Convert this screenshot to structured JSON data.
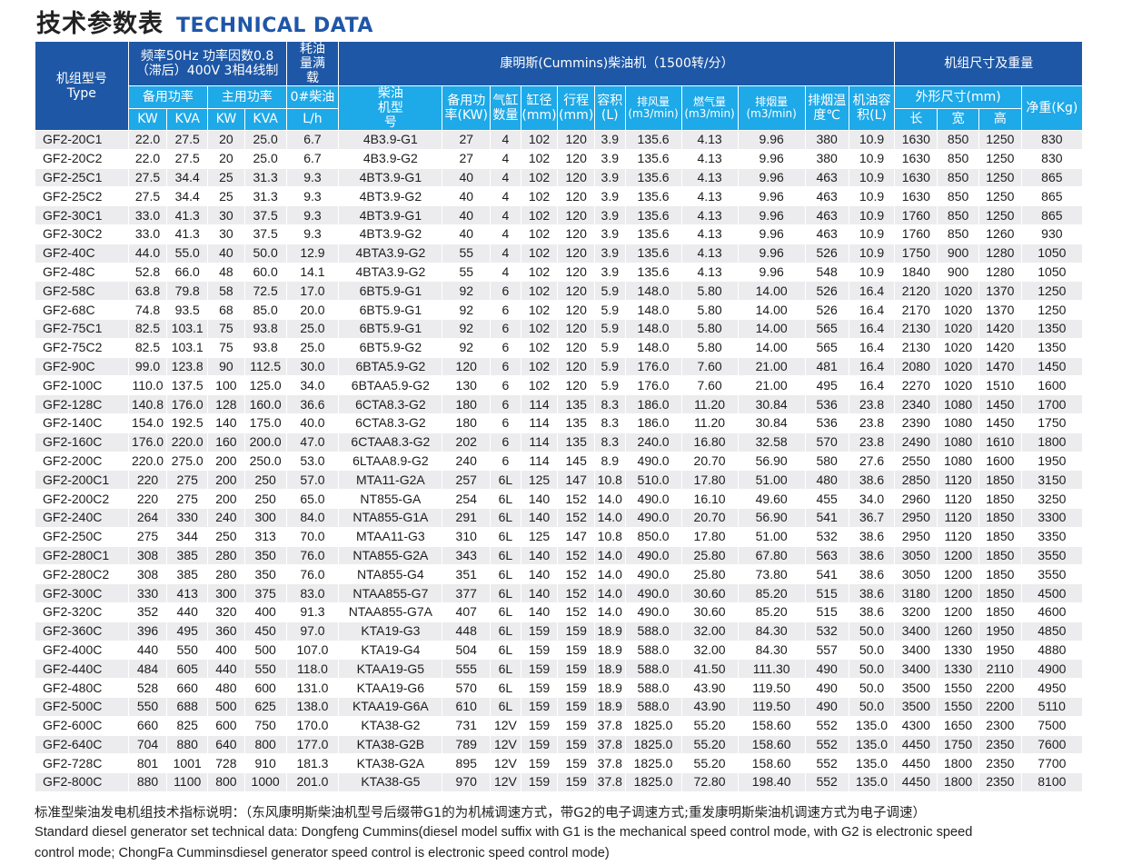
{
  "title": {
    "cn": "技术参数表",
    "en": "TECHNICAL DATA"
  },
  "header": {
    "type_label_cn": "机组型号",
    "type_label_en": "Type",
    "freq_group": "频率50Hz 功率因数0.8（滞后）400V 3相4线制",
    "fuel_group": "耗油量满载",
    "engine_group": "康明斯(Cummins)柴油机（1500转/分）",
    "dim_group": "机组尺寸及重量",
    "standby_power": "备用功率",
    "prime_power": "主用功率",
    "diesel_fuel": "0#柴油",
    "fuel_unit": "L/h",
    "engine_model": "柴油机型号",
    "engine_standby": "备用功率(KW)",
    "cylinders": "气缸数量",
    "bore": "缸径(mm)",
    "stroke": "行程(mm)",
    "displacement": "容积(L)",
    "air_flow": "排风量(m3/min)",
    "combustion_air": "燃气量(m3/min)",
    "exhaust_flow": "排烟量(m3/min)",
    "exhaust_temp": "排烟温度℃",
    "oil_capacity": "机油容积(L)",
    "dimensions": "外形尺寸(mm)",
    "net_weight": "净重(Kg)",
    "kw": "KW",
    "kva": "KVA",
    "length": "长",
    "width": "宽",
    "height": "高"
  },
  "rows": [
    [
      "GF2-20C1",
      "22.0",
      "27.5",
      "20",
      "25.0",
      "6.7",
      "4B3.9-G1",
      "27",
      "4",
      "102",
      "120",
      "3.9",
      "135.6",
      "4.13",
      "9.96",
      "380",
      "10.9",
      "1630",
      "850",
      "1250",
      "830"
    ],
    [
      "GF2-20C2",
      "22.0",
      "27.5",
      "20",
      "25.0",
      "6.7",
      "4B3.9-G2",
      "27",
      "4",
      "102",
      "120",
      "3.9",
      "135.6",
      "4.13",
      "9.96",
      "380",
      "10.9",
      "1630",
      "850",
      "1250",
      "830"
    ],
    [
      "GF2-25C1",
      "27.5",
      "34.4",
      "25",
      "31.3",
      "9.3",
      "4BT3.9-G1",
      "40",
      "4",
      "102",
      "120",
      "3.9",
      "135.6",
      "4.13",
      "9.96",
      "463",
      "10.9",
      "1630",
      "850",
      "1250",
      "865"
    ],
    [
      "GF2-25C2",
      "27.5",
      "34.4",
      "25",
      "31.3",
      "9.3",
      "4BT3.9-G2",
      "40",
      "4",
      "102",
      "120",
      "3.9",
      "135.6",
      "4.13",
      "9.96",
      "463",
      "10.9",
      "1630",
      "850",
      "1250",
      "865"
    ],
    [
      "GF2-30C1",
      "33.0",
      "41.3",
      "30",
      "37.5",
      "9.3",
      "4BT3.9-G1",
      "40",
      "4",
      "102",
      "120",
      "3.9",
      "135.6",
      "4.13",
      "9.96",
      "463",
      "10.9",
      "1760",
      "850",
      "1250",
      "865"
    ],
    [
      "GF2-30C2",
      "33.0",
      "41.3",
      "30",
      "37.5",
      "9.3",
      "4BT3.9-G2",
      "40",
      "4",
      "102",
      "120",
      "3.9",
      "135.6",
      "4.13",
      "9.96",
      "463",
      "10.9",
      "1760",
      "850",
      "1260",
      "930"
    ],
    [
      "GF2-40C",
      "44.0",
      "55.0",
      "40",
      "50.0",
      "12.9",
      "4BTA3.9-G2",
      "55",
      "4",
      "102",
      "120",
      "3.9",
      "135.6",
      "4.13",
      "9.96",
      "526",
      "10.9",
      "1750",
      "900",
      "1280",
      "1050"
    ],
    [
      "GF2-48C",
      "52.8",
      "66.0",
      "48",
      "60.0",
      "14.1",
      "4BTA3.9-G2",
      "55",
      "4",
      "102",
      "120",
      "3.9",
      "135.6",
      "4.13",
      "9.96",
      "548",
      "10.9",
      "1840",
      "900",
      "1280",
      "1050"
    ],
    [
      "GF2-58C",
      "63.8",
      "79.8",
      "58",
      "72.5",
      "17.0",
      "6BT5.9-G1",
      "92",
      "6",
      "102",
      "120",
      "5.9",
      "148.0",
      "5.80",
      "14.00",
      "526",
      "16.4",
      "2120",
      "1020",
      "1370",
      "1250"
    ],
    [
      "GF2-68C",
      "74.8",
      "93.5",
      "68",
      "85.0",
      "20.0",
      "6BT5.9-G1",
      "92",
      "6",
      "102",
      "120",
      "5.9",
      "148.0",
      "5.80",
      "14.00",
      "526",
      "16.4",
      "2170",
      "1020",
      "1370",
      "1250"
    ],
    [
      "GF2-75C1",
      "82.5",
      "103.1",
      "75",
      "93.8",
      "25.0",
      "6BT5.9-G1",
      "92",
      "6",
      "102",
      "120",
      "5.9",
      "148.0",
      "5.80",
      "14.00",
      "565",
      "16.4",
      "2130",
      "1020",
      "1420",
      "1350"
    ],
    [
      "GF2-75C2",
      "82.5",
      "103.1",
      "75",
      "93.8",
      "25.0",
      "6BT5.9-G2",
      "92",
      "6",
      "102",
      "120",
      "5.9",
      "148.0",
      "5.80",
      "14.00",
      "565",
      "16.4",
      "2130",
      "1020",
      "1420",
      "1350"
    ],
    [
      "GF2-90C",
      "99.0",
      "123.8",
      "90",
      "112.5",
      "30.0",
      "6BTA5.9-G2",
      "120",
      "6",
      "102",
      "120",
      "5.9",
      "176.0",
      "7.60",
      "21.00",
      "481",
      "16.4",
      "2080",
      "1020",
      "1470",
      "1450"
    ],
    [
      "GF2-100C",
      "110.0",
      "137.5",
      "100",
      "125.0",
      "34.0",
      "6BTAA5.9-G2",
      "130",
      "6",
      "102",
      "120",
      "5.9",
      "176.0",
      "7.60",
      "21.00",
      "495",
      "16.4",
      "2270",
      "1020",
      "1510",
      "1600"
    ],
    [
      "GF2-128C",
      "140.8",
      "176.0",
      "128",
      "160.0",
      "36.6",
      "6CTA8.3-G2",
      "180",
      "6",
      "114",
      "135",
      "8.3",
      "186.0",
      "11.20",
      "30.84",
      "536",
      "23.8",
      "2340",
      "1080",
      "1450",
      "1700"
    ],
    [
      "GF2-140C",
      "154.0",
      "192.5",
      "140",
      "175.0",
      "40.0",
      "6CTA8.3-G2",
      "180",
      "6",
      "114",
      "135",
      "8.3",
      "186.0",
      "11.20",
      "30.84",
      "536",
      "23.8",
      "2390",
      "1080",
      "1450",
      "1750"
    ],
    [
      "GF2-160C",
      "176.0",
      "220.0",
      "160",
      "200.0",
      "47.0",
      "6CTAA8.3-G2",
      "202",
      "6",
      "114",
      "135",
      "8.3",
      "240.0",
      "16.80",
      "32.58",
      "570",
      "23.8",
      "2490",
      "1080",
      "1610",
      "1800"
    ],
    [
      "GF2-200C",
      "220.0",
      "275.0",
      "200",
      "250.0",
      "53.0",
      "6LTAA8.9-G2",
      "240",
      "6",
      "114",
      "145",
      "8.9",
      "490.0",
      "20.70",
      "56.90",
      "580",
      "27.6",
      "2550",
      "1080",
      "1600",
      "1950"
    ],
    [
      "GF2-200C1",
      "220",
      "275",
      "200",
      "250",
      "57.0",
      "MTA11-G2A",
      "257",
      "6L",
      "125",
      "147",
      "10.8",
      "510.0",
      "17.80",
      "51.00",
      "480",
      "38.6",
      "2850",
      "1120",
      "1850",
      "3150"
    ],
    [
      "GF2-200C2",
      "220",
      "275",
      "200",
      "250",
      "65.0",
      "NT855-GA",
      "254",
      "6L",
      "140",
      "152",
      "14.0",
      "490.0",
      "16.10",
      "49.60",
      "455",
      "34.0",
      "2960",
      "1120",
      "1850",
      "3250"
    ],
    [
      "GF2-240C",
      "264",
      "330",
      "240",
      "300",
      "84.0",
      "NTA855-G1A",
      "291",
      "6L",
      "140",
      "152",
      "14.0",
      "490.0",
      "20.70",
      "56.90",
      "541",
      "36.7",
      "2950",
      "1120",
      "1850",
      "3300"
    ],
    [
      "GF2-250C",
      "275",
      "344",
      "250",
      "313",
      "70.0",
      "MTAA11-G3",
      "310",
      "6L",
      "125",
      "147",
      "10.8",
      "850.0",
      "17.80",
      "51.00",
      "532",
      "38.6",
      "2950",
      "1120",
      "1850",
      "3350"
    ],
    [
      "GF2-280C1",
      "308",
      "385",
      "280",
      "350",
      "76.0",
      "NTA855-G2A",
      "343",
      "6L",
      "140",
      "152",
      "14.0",
      "490.0",
      "25.80",
      "67.80",
      "563",
      "38.6",
      "3050",
      "1200",
      "1850",
      "3550"
    ],
    [
      "GF2-280C2",
      "308",
      "385",
      "280",
      "350",
      "76.0",
      "NTA855-G4",
      "351",
      "6L",
      "140",
      "152",
      "14.0",
      "490.0",
      "25.80",
      "73.80",
      "541",
      "38.6",
      "3050",
      "1200",
      "1850",
      "3550"
    ],
    [
      "GF2-300C",
      "330",
      "413",
      "300",
      "375",
      "83.0",
      "NTAA855-G7",
      "377",
      "6L",
      "140",
      "152",
      "14.0",
      "490.0",
      "30.60",
      "85.20",
      "515",
      "38.6",
      "3180",
      "1200",
      "1850",
      "4500"
    ],
    [
      "GF2-320C",
      "352",
      "440",
      "320",
      "400",
      "91.3",
      "NTAA855-G7A",
      "407",
      "6L",
      "140",
      "152",
      "14.0",
      "490.0",
      "30.60",
      "85.20",
      "515",
      "38.6",
      "3200",
      "1200",
      "1850",
      "4600"
    ],
    [
      "GF2-360C",
      "396",
      "495",
      "360",
      "450",
      "97.0",
      "KTA19-G3",
      "448",
      "6L",
      "159",
      "159",
      "18.9",
      "588.0",
      "32.00",
      "84.30",
      "532",
      "50.0",
      "3400",
      "1260",
      "1950",
      "4850"
    ],
    [
      "GF2-400C",
      "440",
      "550",
      "400",
      "500",
      "107.0",
      "KTA19-G4",
      "504",
      "6L",
      "159",
      "159",
      "18.9",
      "588.0",
      "32.00",
      "84.30",
      "557",
      "50.0",
      "3400",
      "1330",
      "1950",
      "4880"
    ],
    [
      "GF2-440C",
      "484",
      "605",
      "440",
      "550",
      "118.0",
      "KTAA19-G5",
      "555",
      "6L",
      "159",
      "159",
      "18.9",
      "588.0",
      "41.50",
      "111.30",
      "490",
      "50.0",
      "3400",
      "1330",
      "2110",
      "4900"
    ],
    [
      "GF2-480C",
      "528",
      "660",
      "480",
      "600",
      "131.0",
      "KTAA19-G6",
      "570",
      "6L",
      "159",
      "159",
      "18.9",
      "588.0",
      "43.90",
      "119.50",
      "490",
      "50.0",
      "3500",
      "1550",
      "2200",
      "4950"
    ],
    [
      "GF2-500C",
      "550",
      "688",
      "500",
      "625",
      "138.0",
      "KTAA19-G6A",
      "610",
      "6L",
      "159",
      "159",
      "18.9",
      "588.0",
      "43.90",
      "119.50",
      "490",
      "50.0",
      "3500",
      "1550",
      "2200",
      "5110"
    ],
    [
      "GF2-600C",
      "660",
      "825",
      "600",
      "750",
      "170.0",
      "KTA38-G2",
      "731",
      "12V",
      "159",
      "159",
      "37.8",
      "1825.0",
      "55.20",
      "158.60",
      "552",
      "135.0",
      "4300",
      "1650",
      "2300",
      "7500"
    ],
    [
      "GF2-640C",
      "704",
      "880",
      "640",
      "800",
      "177.0",
      "KTA38-G2B",
      "789",
      "12V",
      "159",
      "159",
      "37.8",
      "1825.0",
      "55.20",
      "158.60",
      "552",
      "135.0",
      "4450",
      "1750",
      "2350",
      "7600"
    ],
    [
      "GF2-728C",
      "801",
      "1001",
      "728",
      "910",
      "181.3",
      "KTA38-G2A",
      "895",
      "12V",
      "159",
      "159",
      "37.8",
      "1825.0",
      "55.20",
      "158.60",
      "552",
      "135.0",
      "4450",
      "1800",
      "2350",
      "7700"
    ],
    [
      "GF2-800C",
      "880",
      "1100",
      "800",
      "1000",
      "201.0",
      "KTA38-G5",
      "970",
      "12V",
      "159",
      "159",
      "37.8",
      "1825.0",
      "72.80",
      "198.40",
      "552",
      "135.0",
      "4450",
      "1800",
      "2350",
      "8100"
    ]
  ],
  "notes": {
    "cn": "标准型柴油发电机组技术指标说明：（东风康明斯柴油机型号后缀带G1的为机械调速方式，带G2的电子调速方式;重发康明斯柴油机调速方式为电子调速）",
    "en_line1": "Standard diesel generator set technical data: Dongfeng Cummins(diesel model suffix with G1 is the mechanical speed control mode, with G2 is electronic speed",
    "en_line2": "control mode; ChongFa Cumminsdiesel generator speed control is electronic speed control mode)"
  }
}
